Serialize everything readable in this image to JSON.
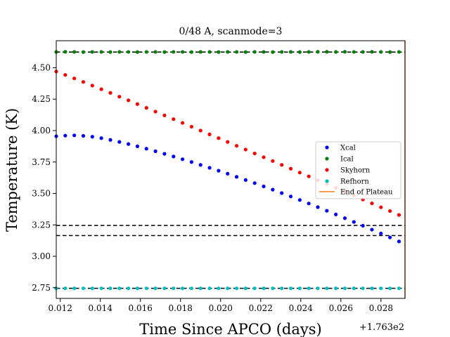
{
  "chart_data": {
    "type": "scatter",
    "title": "0/48 A, scanmode=3",
    "xlabel": "Time Since APCO (days)",
    "ylabel": "Temperature (K)",
    "x_offset_label": "+1.763e2",
    "xlim": [
      0.0118,
      0.0292
    ],
    "ylim": [
      2.665,
      4.715
    ],
    "x_ticks": [
      0.012,
      0.014,
      0.016,
      0.018,
      0.02,
      0.022,
      0.024,
      0.026,
      0.028
    ],
    "x_tick_labels": [
      "0.012",
      "0.014",
      "0.016",
      "0.018",
      "0.020",
      "0.022",
      "0.024",
      "0.026",
      "0.028"
    ],
    "y_ticks": [
      2.75,
      3.0,
      3.25,
      3.5,
      3.75,
      4.0,
      4.25,
      4.5
    ],
    "y_tick_labels": [
      "2.75",
      "3.00",
      "3.25",
      "3.50",
      "3.75",
      "4.00",
      "4.25",
      "4.50"
    ],
    "grid": false,
    "legend_position": "center-right",
    "x": [
      0.0118,
      0.01225,
      0.0127,
      0.01315,
      0.0136,
      0.01405,
      0.0145,
      0.01495,
      0.0154,
      0.01585,
      0.0163,
      0.01675,
      0.0172,
      0.01765,
      0.0181,
      0.01855,
      0.019,
      0.01945,
      0.0199,
      0.02035,
      0.0208,
      0.02125,
      0.0217,
      0.02215,
      0.0226,
      0.02305,
      0.0235,
      0.02395,
      0.0244,
      0.02485,
      0.0253,
      0.02575,
      0.0262,
      0.02665,
      0.0271,
      0.02755,
      0.028,
      0.02845,
      0.0289
    ],
    "series": [
      {
        "name": "Xcal",
        "color": "#0000ff",
        "values": [
          3.955,
          3.96,
          3.962,
          3.958,
          3.951,
          3.94,
          3.926,
          3.91,
          3.893,
          3.875,
          3.856,
          3.836,
          3.815,
          3.794,
          3.772,
          3.75,
          3.727,
          3.704,
          3.681,
          3.657,
          3.632,
          3.607,
          3.582,
          3.556,
          3.53,
          3.503,
          3.476,
          3.448,
          3.42,
          3.391,
          3.362,
          3.333,
          3.303,
          3.273,
          3.243,
          3.212,
          3.181,
          3.15,
          3.118
        ]
      },
      {
        "name": "Ical",
        "color": "#008000",
        "values": [
          4.626,
          4.627,
          4.626,
          4.625,
          4.626,
          4.626,
          4.625,
          4.626,
          4.626,
          4.625,
          4.626,
          4.626,
          4.625,
          4.626,
          4.626,
          4.625,
          4.626,
          4.626,
          4.625,
          4.626,
          4.626,
          4.625,
          4.626,
          4.626,
          4.625,
          4.626,
          4.626,
          4.625,
          4.626,
          4.627,
          4.627,
          4.626,
          4.627,
          4.626,
          4.626,
          4.627,
          4.626,
          4.625,
          4.626
        ]
      },
      {
        "name": "Skyhorn",
        "color": "#ff0000",
        "values": [
          4.47,
          4.443,
          4.415,
          4.387,
          4.358,
          4.329,
          4.3,
          4.27,
          4.241,
          4.211,
          4.181,
          4.151,
          4.121,
          4.091,
          4.061,
          4.031,
          4.0,
          3.97,
          3.94,
          3.91,
          3.879,
          3.849,
          3.818,
          3.788,
          3.758,
          3.727,
          3.697,
          3.666,
          3.636,
          3.605,
          3.574,
          3.544,
          3.513,
          3.483,
          3.452,
          3.421,
          3.39,
          3.36,
          3.329
        ]
      },
      {
        "name": "Refhorn",
        "color": "#00bfbf",
        "values": [
          2.745,
          2.745,
          2.745,
          2.745,
          2.745,
          2.745,
          2.745,
          2.745,
          2.745,
          2.745,
          2.745,
          2.745,
          2.745,
          2.745,
          2.745,
          2.745,
          2.745,
          2.745,
          2.745,
          2.745,
          2.745,
          2.745,
          2.745,
          2.745,
          2.745,
          2.745,
          2.745,
          2.745,
          2.745,
          2.745,
          2.745,
          2.745,
          2.745,
          2.745,
          2.745,
          2.745,
          2.745,
          2.745,
          2.745
        ]
      }
    ],
    "vertical_lines": [
      {
        "name": "End of Plateau",
        "color": "#ff7f0e",
        "x": 0.0292
      }
    ],
    "horizontal_dashed_lines": [
      4.625,
      3.245,
      3.165,
      2.745
    ]
  }
}
